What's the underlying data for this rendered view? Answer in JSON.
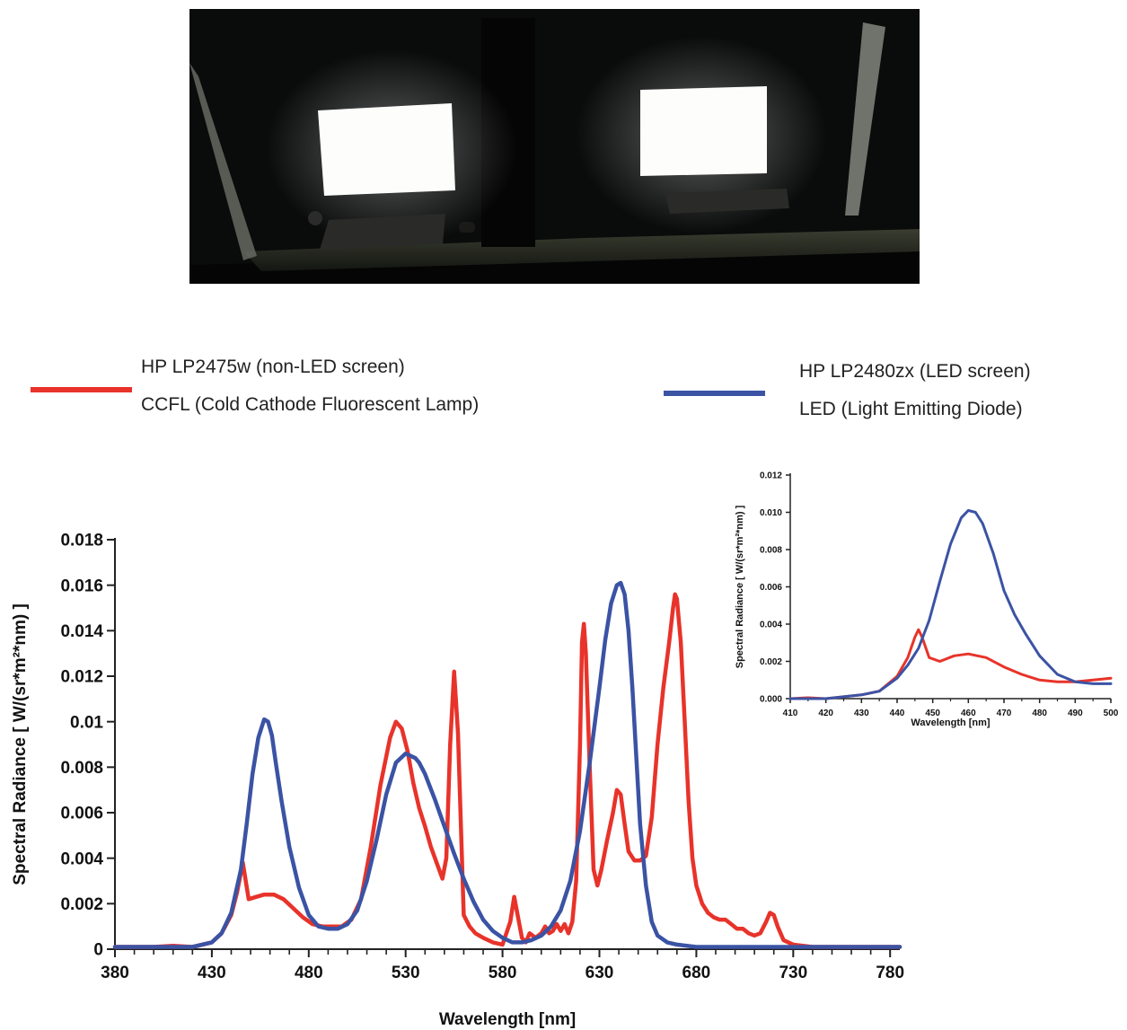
{
  "legend": {
    "ccfl": {
      "line1": "HP LP2475w (non-LED screen)",
      "line2": "CCFL (Cold Cathode Fluorescent Lamp)",
      "color": "#e8332a"
    },
    "led": {
      "line1": "HP LP2480zx (LED screen)",
      "line2": "LED (Light Emitting Diode)",
      "color": "#3b53a4"
    }
  },
  "chart_data": [
    {
      "type": "line",
      "xlabel": "Wavelength [nm]",
      "ylabel": "Spectral Radiance [ W/(sr*m²*nm) ]",
      "xlim": [
        380,
        785
      ],
      "ylim": [
        0,
        0.018
      ],
      "xticks": [
        380,
        430,
        480,
        530,
        580,
        630,
        680,
        730,
        780
      ],
      "xtick_labels": [
        "380",
        "430",
        "480",
        "530",
        "580",
        "630",
        "680",
        "730",
        "780"
      ],
      "yticks": [
        0,
        0.002,
        0.004,
        0.006,
        0.008,
        0.01,
        0.012,
        0.014,
        0.016,
        0.018
      ],
      "ytick_labels": [
        "0",
        "0.002",
        "0.004",
        "0.006",
        "0.008",
        "0.01",
        "0.012",
        "0.014",
        "0.016",
        "0.018"
      ],
      "series": [
        {
          "color": "#e8332a",
          "x": [
            380,
            400,
            410,
            420,
            430,
            435,
            440,
            443,
            446,
            449,
            453,
            457,
            462,
            467,
            472,
            477,
            482,
            487,
            492,
            497,
            502,
            507,
            512,
            517,
            522,
            525,
            528,
            531,
            534,
            537,
            540,
            543,
            546,
            549,
            551,
            553,
            555,
            557,
            560,
            563,
            566,
            570,
            575,
            580,
            584,
            586,
            588,
            590,
            592,
            594,
            597,
            600,
            602,
            604,
            606,
            608,
            610,
            612,
            614,
            616,
            618,
            620,
            621,
            622,
            623,
            625,
            627,
            629,
            631,
            634,
            637,
            639,
            641,
            643,
            645,
            648,
            651,
            654,
            657,
            660,
            663,
            666,
            668,
            669,
            670,
            672,
            674,
            676,
            678,
            680,
            683,
            686,
            689,
            692,
            695,
            698,
            701,
            704,
            707,
            710,
            713,
            716,
            718,
            720,
            722,
            725,
            730,
            740,
            760,
            785
          ],
          "y": [
            0.0001,
            0.0001,
            0.00015,
            0.0001,
            0.0003,
            0.0007,
            0.0015,
            0.0025,
            0.0038,
            0.0022,
            0.0023,
            0.0024,
            0.0024,
            0.0022,
            0.0018,
            0.0014,
            0.0011,
            0.001,
            0.001,
            0.001,
            0.0013,
            0.0022,
            0.0045,
            0.0072,
            0.0093,
            0.01,
            0.0097,
            0.0087,
            0.0073,
            0.0062,
            0.0054,
            0.0045,
            0.0038,
            0.0031,
            0.004,
            0.009,
            0.0122,
            0.0095,
            0.0015,
            0.001,
            0.0007,
            0.0005,
            0.0003,
            0.0002,
            0.0012,
            0.0023,
            0.0014,
            0.0005,
            0.0003,
            0.0007,
            0.0005,
            0.0007,
            0.001,
            0.0007,
            0.0008,
            0.0011,
            0.0008,
            0.0011,
            0.0007,
            0.0012,
            0.003,
            0.009,
            0.0135,
            0.0143,
            0.013,
            0.008,
            0.0035,
            0.0028,
            0.0035,
            0.0048,
            0.006,
            0.007,
            0.0068,
            0.0055,
            0.0043,
            0.0039,
            0.0039,
            0.0041,
            0.0058,
            0.009,
            0.0115,
            0.0135,
            0.015,
            0.0156,
            0.0154,
            0.0135,
            0.01,
            0.0065,
            0.004,
            0.0028,
            0.002,
            0.0016,
            0.0014,
            0.0013,
            0.0013,
            0.0011,
            0.0009,
            0.0009,
            0.0007,
            0.0006,
            0.0007,
            0.0012,
            0.0016,
            0.0015,
            0.001,
            0.0004,
            0.0002,
            0.0001,
            0.0001,
            0.0001
          ]
        },
        {
          "color": "#3b53a4",
          "x": [
            380,
            410,
            420,
            430,
            435,
            440,
            445,
            448,
            451,
            454,
            457,
            459,
            461,
            463,
            466,
            470,
            475,
            480,
            485,
            490,
            495,
            500,
            505,
            510,
            515,
            520,
            525,
            530,
            535,
            537,
            540,
            545,
            550,
            555,
            560,
            565,
            570,
            575,
            580,
            585,
            590,
            595,
            600,
            605,
            610,
            615,
            620,
            625,
            630,
            633,
            636,
            639,
            641,
            643,
            645,
            647,
            649,
            651,
            654,
            657,
            660,
            665,
            670,
            680,
            690,
            700,
            720,
            740,
            785
          ],
          "y": [
            0.0001,
            0.0001,
            0.0001,
            0.0003,
            0.0007,
            0.0016,
            0.0035,
            0.0055,
            0.0077,
            0.0093,
            0.0101,
            0.01,
            0.0094,
            0.0082,
            0.0065,
            0.0045,
            0.0027,
            0.0015,
            0.001,
            0.0009,
            0.0009,
            0.0011,
            0.0017,
            0.003,
            0.0048,
            0.0068,
            0.0082,
            0.0086,
            0.0084,
            0.0082,
            0.0077,
            0.0066,
            0.0054,
            0.0042,
            0.0031,
            0.0021,
            0.0013,
            0.0008,
            0.0005,
            0.0003,
            0.0003,
            0.0004,
            0.0006,
            0.001,
            0.0017,
            0.003,
            0.0052,
            0.0082,
            0.0115,
            0.0136,
            0.0152,
            0.016,
            0.0161,
            0.0156,
            0.014,
            0.0115,
            0.0085,
            0.0055,
            0.0028,
            0.0012,
            0.0006,
            0.0003,
            0.0002,
            0.0001,
            0.0001,
            0.0001,
            0.0001,
            0.0001,
            0.0001
          ]
        }
      ]
    },
    {
      "type": "line",
      "xlabel": "Wavelength [nm]",
      "ylabel": "Spectral Radiance [ W/(sr*m²*nm) ]",
      "xlim": [
        410,
        500
      ],
      "ylim": [
        0,
        0.012
      ],
      "xticks": [
        410,
        420,
        430,
        440,
        450,
        460,
        470,
        480,
        490,
        500
      ],
      "xtick_labels": [
        "410",
        "420",
        "430",
        "440",
        "450",
        "460",
        "470",
        "480",
        "490",
        "500"
      ],
      "yticks": [
        0,
        0.002,
        0.004,
        0.006,
        0.008,
        0.01,
        0.012
      ],
      "ytick_labels": [
        "0.000",
        "0.002",
        "0.004",
        "0.006",
        "0.008",
        "0.010",
        "0.012"
      ],
      "series": [
        {
          "color": "#e8332a",
          "x": [
            410,
            415,
            420,
            425,
            430,
            435,
            440,
            443,
            445,
            446,
            447,
            449,
            452,
            456,
            460,
            465,
            470,
            475,
            480,
            485,
            490,
            495,
            500
          ],
          "y": [
            0.0,
            5e-05,
            0.0,
            0.0001,
            0.0002,
            0.0004,
            0.0012,
            0.0022,
            0.0033,
            0.0037,
            0.0033,
            0.0022,
            0.002,
            0.0023,
            0.0024,
            0.0022,
            0.0017,
            0.0013,
            0.001,
            0.0009,
            0.0009,
            0.001,
            0.0011
          ]
        },
        {
          "color": "#3b53a4",
          "x": [
            410,
            415,
            420,
            425,
            430,
            435,
            440,
            443,
            446,
            449,
            452,
            455,
            458,
            460,
            462,
            464,
            467,
            470,
            473,
            476,
            480,
            485,
            490,
            495,
            500
          ],
          "y": [
            0.0,
            0.0,
            0.0,
            0.0001,
            0.0002,
            0.0004,
            0.0011,
            0.0018,
            0.0027,
            0.0042,
            0.0063,
            0.0083,
            0.0097,
            0.0101,
            0.01,
            0.0094,
            0.0078,
            0.0058,
            0.0045,
            0.0035,
            0.0023,
            0.0013,
            0.0009,
            0.0008,
            0.0008
          ]
        }
      ]
    }
  ]
}
